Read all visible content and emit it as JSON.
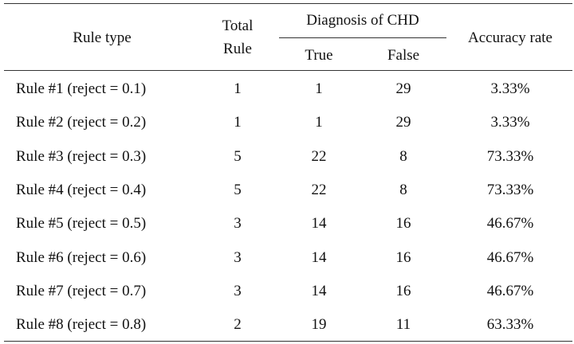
{
  "table": {
    "header": {
      "rule_type": "Rule type",
      "total_rule": "Total Rule",
      "diagnosis": "Diagnosis of CHD",
      "true": "True",
      "false": "False",
      "accuracy": "Accuracy rate"
    },
    "rows": [
      [
        "Rule #1 (reject = 0.1)",
        "1",
        "1",
        "29",
        "3.33%"
      ],
      [
        "Rule #2 (reject = 0.2)",
        "1",
        "1",
        "29",
        "3.33%"
      ],
      [
        "Rule #3 (reject = 0.3)",
        "5",
        "22",
        "8",
        "73.33%"
      ],
      [
        "Rule #4 (reject = 0.4)",
        "5",
        "22",
        "8",
        "73.33%"
      ],
      [
        "Rule #5 (reject = 0.5)",
        "3",
        "14",
        "16",
        "46.67%"
      ],
      [
        "Rule #6 (reject = 0.6)",
        "3",
        "14",
        "16",
        "46.67%"
      ],
      [
        "Rule #7 (reject = 0.7)",
        "3",
        "14",
        "16",
        "46.67%"
      ],
      [
        "Rule #8 (reject = 0.8)",
        "2",
        "19",
        "11",
        "63.33%"
      ]
    ]
  }
}
